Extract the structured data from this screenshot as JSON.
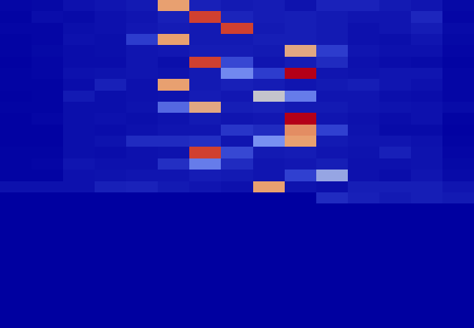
{
  "chart_data": {
    "type": "heatmap",
    "tick_labels": false,
    "zlim": [
      0,
      10
    ],
    "cells": [
      [
        0.3,
        0.4,
        0.8,
        1,
        1.2,
        7,
        1.5,
        1.2,
        1.3,
        0.9,
        1.6,
        1.6,
        1.2,
        1,
        0.4
      ],
      [
        0.2,
        0.6,
        0.5,
        0.8,
        1,
        1.5,
        8,
        1.7,
        1.3,
        1.4,
        1.2,
        1,
        1,
        1.8,
        0.3
      ],
      [
        0.3,
        0.3,
        0.7,
        0.8,
        1.1,
        1.3,
        1.2,
        8,
        1.2,
        1.4,
        1.2,
        0.8,
        1,
        1.3,
        0.5
      ],
      [
        0.2,
        0.3,
        0.8,
        0.7,
        2.8,
        7,
        1.2,
        1.2,
        1.4,
        1.4,
        1.2,
        0.8,
        0.7,
        1,
        0.4
      ],
      [
        0.2,
        0.4,
        0.6,
        0.7,
        1,
        1.1,
        1.3,
        1.3,
        1.2,
        6.8,
        2.8,
        1,
        0.8,
        0.8,
        0.3
      ],
      [
        0.1,
        0.3,
        0.6,
        0.6,
        1,
        0.7,
        8,
        3.2,
        1,
        1.3,
        2,
        0.8,
        0.6,
        0.5,
        0.2
      ],
      [
        0.2,
        0.3,
        0.8,
        0.9,
        1,
        0.9,
        1.2,
        4.8,
        2.8,
        10,
        1,
        0.9,
        1,
        1,
        0.3
      ],
      [
        0.2,
        0.2,
        0.6,
        1.5,
        0.8,
        7,
        1.2,
        1.5,
        1.3,
        1,
        1.2,
        1.4,
        1,
        0.8,
        0.3
      ],
      [
        0.1,
        0.2,
        1.2,
        0.7,
        0.8,
        0.9,
        1.3,
        1.1,
        6,
        4.5,
        1,
        1,
        0.7,
        0.6,
        0.3
      ],
      [
        0.2,
        0.2,
        0.7,
        0.7,
        0.9,
        4,
        6.8,
        1.4,
        1.5,
        1.2,
        1.2,
        1,
        0.9,
        0.8,
        0.5
      ],
      [
        0.1,
        0.3,
        0.7,
        0.8,
        0.7,
        0.9,
        1.2,
        1,
        1.1,
        10,
        1,
        0.8,
        0.6,
        0.8,
        0.2
      ],
      [
        0.1,
        0.1,
        0.7,
        0.6,
        0.8,
        1,
        1,
        2.5,
        2,
        7.2,
        3,
        0.9,
        0.5,
        0.5,
        0.1
      ],
      [
        0.1,
        0.1,
        0.7,
        0.9,
        2,
        2,
        2.2,
        1,
        5,
        7,
        1.2,
        1,
        1,
        0.8,
        0.2
      ],
      [
        0.2,
        0.2,
        0.7,
        0.6,
        0.8,
        0.9,
        8,
        3.2,
        1.2,
        1.3,
        1,
        0.9,
        1.5,
        0.9,
        0.3
      ],
      [
        0.2,
        0.3,
        1,
        0.8,
        0.8,
        2.2,
        4.5,
        2,
        1,
        1.1,
        1.4,
        0.8,
        0.8,
        0.9,
        0.4
      ],
      [
        0.2,
        0.2,
        0.8,
        0.9,
        1,
        1,
        1.3,
        1.2,
        1,
        3,
        5.4,
        0.8,
        0.6,
        1,
        0.5
      ],
      [
        0.8,
        0.8,
        0.8,
        1.5,
        1.6,
        1.2,
        1,
        0.8,
        7,
        0.9,
        0.7,
        1.4,
        1.4,
        1.4,
        1
      ],
      [
        0,
        0,
        0,
        0,
        0,
        0,
        0,
        0,
        0,
        0,
        2,
        1.5,
        1.2,
        1.4,
        1.2
      ],
      [
        0,
        0,
        0,
        0,
        0,
        0,
        0,
        0,
        0,
        0,
        0,
        0,
        0,
        0,
        0
      ],
      [
        0,
        0,
        0,
        0,
        0,
        0,
        0,
        0,
        0,
        0,
        0,
        0,
        0,
        0,
        0
      ],
      [
        0,
        0,
        0,
        0,
        0,
        0,
        0,
        0,
        0,
        0,
        0,
        0,
        0,
        0,
        0
      ],
      [
        0,
        0,
        0,
        0,
        0,
        0,
        0,
        0,
        0,
        0,
        0,
        0,
        0,
        0,
        0
      ],
      [
        0,
        0,
        0,
        0,
        0,
        0,
        0,
        0,
        0,
        0,
        0,
        0,
        0,
        0,
        0
      ],
      [
        0,
        0,
        0,
        0,
        0,
        0,
        0,
        0,
        0,
        0,
        0,
        0,
        0,
        0,
        0
      ],
      [
        0,
        0,
        0,
        0,
        0,
        0,
        0,
        0,
        0,
        0,
        0,
        0,
        0,
        0,
        0
      ],
      [
        0,
        0,
        0,
        0,
        0,
        0,
        0,
        0,
        0,
        0,
        0,
        0,
        0,
        0,
        0
      ],
      [
        0,
        0,
        0,
        0,
        0,
        0,
        0,
        0,
        0,
        0,
        0,
        0,
        0,
        0,
        0
      ],
      [
        0,
        0,
        0,
        0,
        0,
        0,
        0,
        0,
        0,
        0,
        0,
        0,
        0,
        0,
        0
      ],
      [
        0,
        0,
        0,
        0,
        0,
        0,
        0,
        0,
        0,
        0,
        0,
        0,
        0,
        0,
        0
      ]
    ]
  }
}
